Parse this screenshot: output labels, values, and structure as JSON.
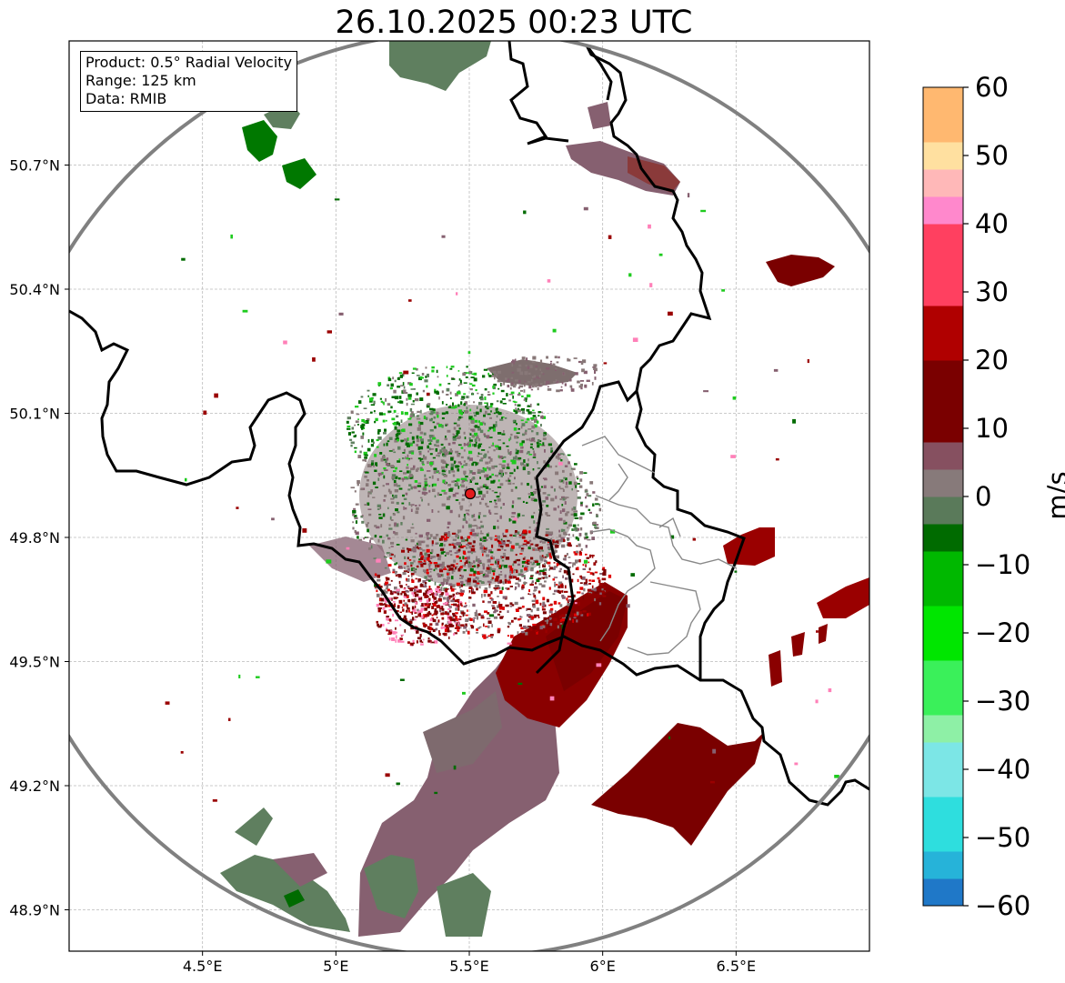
{
  "title": "26.10.2025 00:23 UTC",
  "info": {
    "product": "Product: 0.5° Radial Velocity",
    "range": "Range: 125 km",
    "source": "Data: RMIB"
  },
  "axes": {
    "lon_min": 4.0,
    "lon_max": 7.0,
    "lat_min": 48.8,
    "lat_max": 51.0,
    "x_ticks": [
      {
        "value": 4.5,
        "label": "4.5°E"
      },
      {
        "value": 5.0,
        "label": "5°E"
      },
      {
        "value": 5.5,
        "label": "5.5°E"
      },
      {
        "value": 6.0,
        "label": "6°E"
      },
      {
        "value": 6.5,
        "label": "6.5°E"
      }
    ],
    "y_ticks": [
      {
        "value": 50.7,
        "label": "50.7°N"
      },
      {
        "value": 50.4,
        "label": "50.4°N"
      },
      {
        "value": 50.1,
        "label": "50.1°N"
      },
      {
        "value": 49.8,
        "label": "49.8°N"
      },
      {
        "value": 49.5,
        "label": "49.5°N"
      },
      {
        "value": 49.2,
        "label": "49.2°N"
      },
      {
        "value": 48.9,
        "label": "48.9°N"
      }
    ]
  },
  "radar": {
    "site_lon": 5.505,
    "site_lat": 49.914,
    "range_km": 125,
    "site_color": "#e31a1c"
  },
  "colorbar": {
    "unit": "m/s",
    "min": -60,
    "max": 60,
    "tick_labels": [
      "60",
      "50",
      "40",
      "30",
      "20",
      "10",
      "0",
      "−10",
      "−20",
      "−30",
      "−40",
      "−50",
      "−60"
    ],
    "stops": [
      {
        "v": -60,
        "color": "#1f78c8"
      },
      {
        "v": -55,
        "color": "#26b3d9"
      },
      {
        "v": -50,
        "color": "#2edede"
      },
      {
        "v": -42,
        "color": "#7ce6e6"
      },
      {
        "v": -36,
        "color": "#b8eef0"
      },
      {
        "v": -34,
        "color": "#8ef0a6"
      },
      {
        "v": -30,
        "color": "#3af05a"
      },
      {
        "v": -24,
        "color": "#00e600"
      },
      {
        "v": -16,
        "color": "#00b800"
      },
      {
        "v": -6,
        "color": "#006b00"
      },
      {
        "v": -5,
        "color": "#5a7a5a"
      },
      {
        "v": 0,
        "color": "#877a7a"
      },
      {
        "v": 6,
        "color": "#865060"
      },
      {
        "v": 8,
        "color": "#8a4a4a"
      },
      {
        "v": 10,
        "color": "#7a0000"
      },
      {
        "v": 20,
        "color": "#b00000"
      },
      {
        "v": 28,
        "color": "#ff0000"
      },
      {
        "v": 30,
        "color": "#ff4060"
      },
      {
        "v": 40,
        "color": "#ff88cc"
      },
      {
        "v": 44,
        "color": "#ffb8b8"
      },
      {
        "v": 48,
        "color": "#ffe0a0"
      },
      {
        "v": 54,
        "color": "#ffb870"
      },
      {
        "v": 60,
        "color": "#ff9a55"
      }
    ]
  },
  "echo_colors": {
    "inbound_dark": "#006b00",
    "inbound_bright": "#1ecb1e",
    "near_zero_green": "#5f7f5f",
    "near_zero_grey": "#887878",
    "mauve": "#866070",
    "outbound_dark": "#7a0000",
    "outbound_mid": "#9a0000",
    "outbound_bright": "#e00000",
    "pink": "#ff80b8"
  }
}
